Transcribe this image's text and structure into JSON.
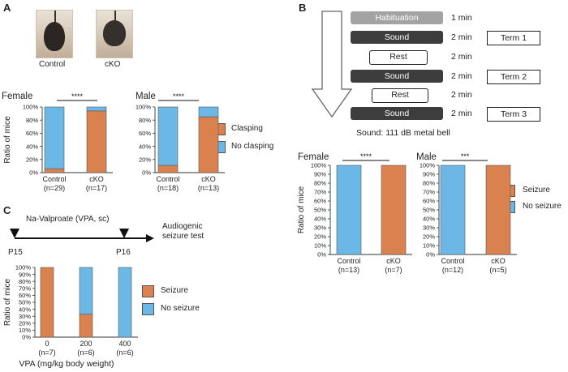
{
  "panels": {
    "a": "A",
    "b": "B",
    "c": "C"
  },
  "panel_a": {
    "photo_labels": [
      "Control",
      "cKO"
    ],
    "legend": [
      "Clasping",
      "No clasping"
    ]
  },
  "panel_b": {
    "protocol": [
      {
        "label": "Habituation",
        "duration": "1 min"
      },
      {
        "label": "Sound",
        "duration": "2 min"
      },
      {
        "label": "Rest",
        "duration": "2 min"
      },
      {
        "label": "Sound",
        "duration": "2 min"
      },
      {
        "label": "Rest",
        "duration": "2 min"
      },
      {
        "label": "Sound",
        "duration": "2 min"
      }
    ],
    "terms": [
      "Term 1",
      "Term 2",
      "Term 3"
    ],
    "sound_note": "Sound: 111 dB metal bell",
    "legend": [
      "Seizure",
      "No seizure"
    ]
  },
  "panel_c": {
    "drug": "Na-Valproate (VPA, sc)",
    "test": "Audiogenic seizure test",
    "timepoints": [
      "P15",
      "P16"
    ],
    "legend": [
      "Seizure",
      "No seizure"
    ]
  },
  "colors": {
    "positive": "#D9824F",
    "negative": "#6BB7E6"
  },
  "chart_data": [
    {
      "id": "a-female",
      "type": "bar",
      "stacked": true,
      "title": "Female",
      "ylabel": "Ratio of mice",
      "ylim": [
        0,
        100
      ],
      "yticks": [
        "0%",
        "20%",
        "40%",
        "60%",
        "80%",
        "100%"
      ],
      "categories": [
        "Control",
        "cKO"
      ],
      "sublabels": [
        "(n=29)",
        "(n=17)"
      ],
      "series": [
        {
          "name": "Clasping",
          "values": [
            6,
            94
          ]
        },
        {
          "name": "No clasping",
          "values": [
            94,
            6
          ]
        }
      ],
      "significance": "****"
    },
    {
      "id": "a-male",
      "type": "bar",
      "stacked": true,
      "title": "Male",
      "ylim": [
        0,
        100
      ],
      "yticks": [
        "0%",
        "20%",
        "40%",
        "60%",
        "80%",
        "100%"
      ],
      "categories": [
        "Control",
        "cKO"
      ],
      "sublabels": [
        "(n=18)",
        "(n=13)"
      ],
      "series": [
        {
          "name": "Clasping",
          "values": [
            11,
            85
          ]
        },
        {
          "name": "No clasping",
          "values": [
            89,
            15
          ]
        }
      ],
      "significance": "****"
    },
    {
      "id": "b-female",
      "type": "bar",
      "stacked": true,
      "title": "Female",
      "ylabel": "Ratio of mice",
      "ylim": [
        0,
        100
      ],
      "yticks": [
        "0%",
        "10%",
        "20%",
        "30%",
        "40%",
        "50%",
        "60%",
        "70%",
        "80%",
        "90%",
        "100%"
      ],
      "categories": [
        "Control",
        "cKO"
      ],
      "sublabels": [
        "(n=13)",
        "(n=7)"
      ],
      "series": [
        {
          "name": "Seizure",
          "values": [
            0,
            100
          ]
        },
        {
          "name": "No seizure",
          "values": [
            100,
            0
          ]
        }
      ],
      "significance": "****"
    },
    {
      "id": "b-male",
      "type": "bar",
      "stacked": true,
      "title": "Male",
      "ylim": [
        0,
        100
      ],
      "yticks": [
        "0%",
        "10%",
        "20%",
        "30%",
        "40%",
        "50%",
        "60%",
        "70%",
        "80%",
        "90%",
        "100%"
      ],
      "categories": [
        "Control",
        "cKO"
      ],
      "sublabels": [
        "(n=12)",
        "(n=5)"
      ],
      "series": [
        {
          "name": "Seizure",
          "values": [
            0,
            100
          ]
        },
        {
          "name": "No seizure",
          "values": [
            100,
            0
          ]
        }
      ],
      "significance": "***"
    },
    {
      "id": "c-vpa",
      "type": "bar",
      "stacked": true,
      "ylabel": "Ratio of mice",
      "xlabel": "VPA (mg/kg body weight)",
      "ylim": [
        0,
        100
      ],
      "yticks": [
        "0%",
        "10%",
        "20%",
        "30%",
        "40%",
        "50%",
        "60%",
        "70%",
        "80%",
        "90%",
        "100%"
      ],
      "categories": [
        "0",
        "200",
        "400"
      ],
      "sublabels": [
        "(n=7)",
        "(n=6)",
        "(n=6)"
      ],
      "series": [
        {
          "name": "Seizure",
          "values": [
            100,
            33,
            0
          ]
        },
        {
          "name": "No seizure",
          "values": [
            0,
            67,
            100
          ]
        }
      ]
    }
  ]
}
